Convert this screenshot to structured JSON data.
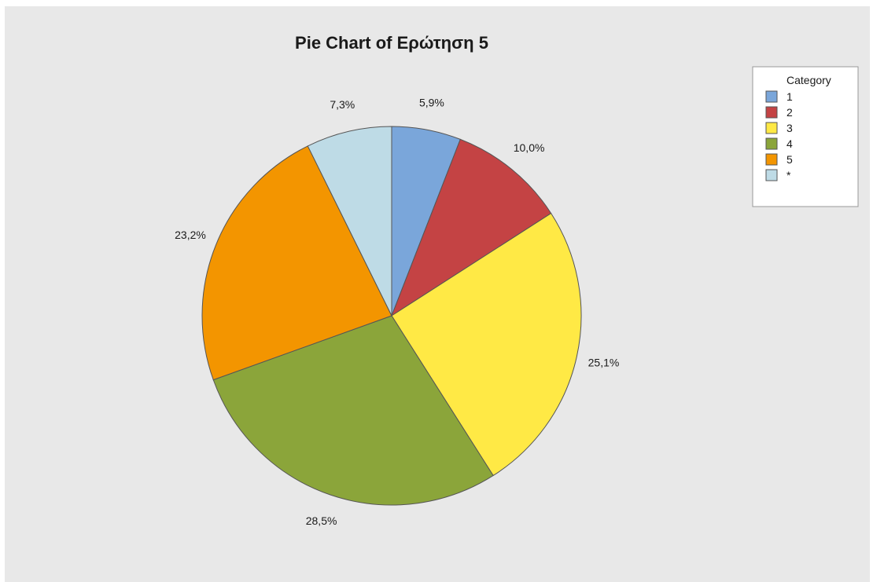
{
  "chart_data": {
    "type": "pie",
    "title": "Pie Chart of Ερώτηση 5",
    "legend_title": "Category",
    "legend_position": "top-right",
    "start_angle_deg": 0,
    "direction": "clockwise",
    "slices": [
      {
        "label": "1",
        "value": 5.9,
        "display": "5,9%",
        "color": "#7aa6da"
      },
      {
        "label": "2",
        "value": 10.0,
        "display": "10,0%",
        "color": "#c44344"
      },
      {
        "label": "3",
        "value": 25.1,
        "display": "25,1%",
        "color": "#ffe945"
      },
      {
        "label": "4",
        "value": 28.5,
        "display": "28,5%",
        "color": "#8ba53a"
      },
      {
        "label": "5",
        "value": 23.2,
        "display": "23,2%",
        "color": "#f39500"
      },
      {
        "label": "*",
        "value": 7.3,
        "display": "7,3%",
        "color": "#bedbe6"
      }
    ]
  }
}
